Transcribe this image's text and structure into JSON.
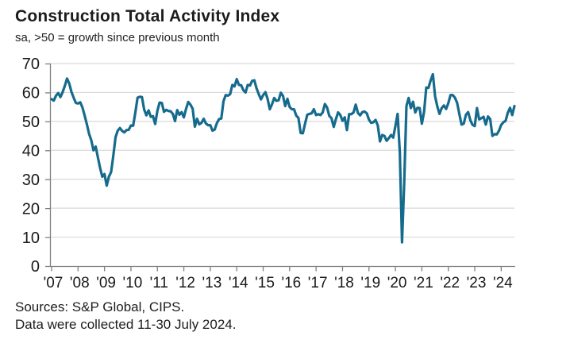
{
  "title": "Construction Total Activity Index",
  "subtitle": "sa, >50 = growth since previous month",
  "footer": {
    "sources": "Sources: S&P Global, CIPS.",
    "collection_note": "Data were collected 11-30 July 2024."
  },
  "style": {
    "line_color": "#166b8d",
    "grid_color": "#d9d9d9",
    "axis_color": "#7f7f7f",
    "text_color": "#1a1a1a"
  },
  "chart_data": {
    "type": "line",
    "title": "Construction Total Activity Index",
    "subtitle": "sa, >50 = growth since previous month",
    "series_name": "UK Construction Total Activity Index (seasonally adjusted)",
    "frequency": "monthly",
    "x_start": "2007-01",
    "x_end": "2024-07",
    "ylim": [
      0,
      70
    ],
    "y_ticks": [
      0,
      10,
      20,
      30,
      40,
      50,
      60,
      70
    ],
    "x_tick_labels": [
      "'07",
      "'08",
      "'09",
      "'10",
      "'11",
      "'12",
      "'13",
      "'14",
      "'15",
      "'16",
      "'17",
      "'18",
      "'19",
      "'20",
      "'21",
      "'22",
      "'23",
      "'24"
    ],
    "grid": "horizontal",
    "legend": "none",
    "line_color": "#166b8d",
    "reference_level_note": ">50 = growth since previous month",
    "values": [
      57.7,
      57.2,
      58.9,
      59.8,
      58.4,
      60.1,
      62.3,
      64.8,
      63.1,
      60.2,
      58.2,
      56.4,
      56.2,
      56.6,
      54.8,
      52.0,
      49.0,
      45.7,
      43.5,
      40.0,
      41.3,
      37.6,
      33.9,
      30.9,
      31.8,
      27.8,
      30.9,
      32.5,
      38.1,
      44.5,
      46.8,
      47.7,
      46.7,
      46.2,
      47.0,
      47.1,
      48.6,
      48.5,
      53.1,
      58.2,
      58.5,
      58.4,
      54.1,
      52.1,
      53.8,
      51.6,
      51.8,
      49.1,
      53.7,
      56.5,
      56.4,
      53.3,
      54.0,
      53.6,
      53.5,
      52.6,
      50.1,
      53.9,
      52.3,
      53.2,
      51.4,
      54.3,
      56.7,
      55.8,
      54.4,
      48.2,
      50.9,
      49.0,
      49.5,
      50.9,
      49.3,
      48.7,
      48.7,
      46.8,
      47.2,
      49.4,
      50.8,
      51.0,
      57.0,
      59.1,
      58.9,
      59.4,
      62.6,
      62.1,
      64.6,
      62.6,
      62.5,
      60.8,
      60.0,
      62.6,
      62.4,
      64.0,
      64.2,
      61.4,
      59.4,
      57.6,
      59.1,
      60.1,
      57.8,
      54.2,
      55.9,
      58.1,
      57.1,
      57.3,
      59.9,
      58.8,
      55.3,
      57.8,
      55.0,
      54.2,
      54.2,
      52.0,
      51.2,
      46.0,
      45.9,
      49.2,
      52.3,
      52.6,
      52.8,
      54.2,
      52.2,
      52.5,
      52.2,
      53.1,
      56.0,
      54.8,
      51.9,
      51.1,
      48.1,
      50.8,
      53.1,
      52.2,
      50.2,
      51.4,
      47.0,
      52.5,
      52.5,
      53.1,
      55.8,
      52.9,
      52.1,
      53.2,
      53.4,
      52.8,
      50.6,
      49.5,
      49.7,
      50.5,
      48.6,
      43.1,
      45.3,
      45.0,
      43.3,
      44.2,
      45.3,
      44.4,
      48.4,
      52.6,
      39.3,
      8.2,
      28.9,
      55.3,
      58.1,
      54.6,
      56.8,
      53.1,
      54.7,
      54.6,
      49.2,
      53.3,
      61.7,
      61.6,
      64.2,
      66.3,
      58.7,
      55.2,
      52.6,
      54.6,
      55.5,
      54.3,
      56.3,
      59.1,
      59.1,
      58.2,
      56.4,
      52.6,
      48.9,
      49.2,
      52.3,
      53.2,
      50.4,
      48.8,
      48.4,
      54.6,
      50.7,
      51.1,
      51.6,
      48.9,
      51.7,
      50.8,
      45.0,
      45.6,
      45.5,
      46.8,
      48.8,
      49.7,
      50.2,
      53.0,
      54.7,
      52.2,
      55.3
    ]
  }
}
